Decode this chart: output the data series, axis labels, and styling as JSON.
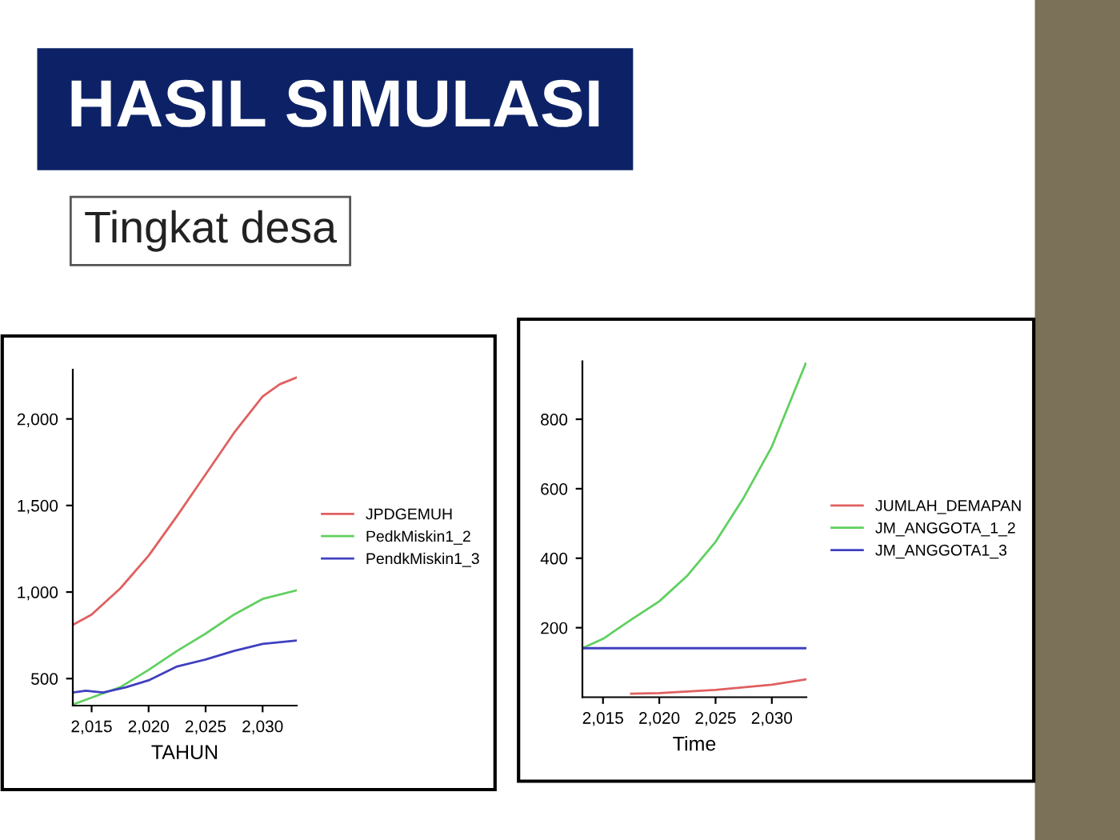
{
  "chart_data": [
    {
      "type": "line",
      "title": "HASIL SIMULASI",
      "subtitle": "Tingkat desa",
      "xlabel": "TAHUN",
      "legend": "right",
      "grid": false,
      "xlim": [
        2013.35,
        2033
      ],
      "ylim": [
        344,
        2285
      ],
      "xticks": [
        {
          "value": 2015,
          "label": "2,015"
        },
        {
          "value": 2020,
          "label": "2,020"
        },
        {
          "value": 2025,
          "label": "2,025"
        },
        {
          "value": 2030,
          "label": "2,030"
        }
      ],
      "yticks": [
        500,
        {
          "value": 1000,
          "label": "1,000"
        },
        {
          "value": 1500,
          "label": "1,500"
        },
        {
          "value": 2000,
          "label": "2,000"
        }
      ],
      "series": [
        {
          "name": "JPDGEMUH",
          "color": "#e06060",
          "x": [
            2013.35,
            2015,
            2017.5,
            2020,
            2022.5,
            2025,
            2027.5,
            2030,
            2031.5,
            2033
          ],
          "values": [
            810,
            870,
            1020,
            1210,
            1440,
            1680,
            1920,
            2130,
            2200,
            2240
          ]
        },
        {
          "name": "PedkMiskin1_2",
          "color": "#60d060",
          "x": [
            2013.35,
            2015,
            2017.5,
            2020,
            2022.5,
            2025,
            2027.5,
            2030,
            2033
          ],
          "values": [
            350,
            390,
            450,
            550,
            660,
            760,
            870,
            960,
            1010
          ]
        },
        {
          "name": "PendkMiskin1_3",
          "color": "#4040c0",
          "x": [
            2013.35,
            2014.5,
            2016,
            2018,
            2020,
            2022.5,
            2025,
            2027.5,
            2030,
            2033
          ],
          "values": [
            420,
            430,
            420,
            450,
            490,
            570,
            610,
            660,
            700,
            720
          ]
        }
      ]
    },
    {
      "type": "line",
      "xlabel": "Time",
      "legend": "right",
      "grid": false,
      "xlim": [
        2013.17,
        2033.07
      ],
      "ylim": [
        0,
        967
      ],
      "xticks": [
        {
          "value": 2015,
          "label": "2,015"
        },
        {
          "value": 2020,
          "label": "2,020"
        },
        {
          "value": 2025,
          "label": "2,025"
        },
        {
          "value": 2030,
          "label": "2,030"
        }
      ],
      "yticks": [
        200,
        400,
        600,
        800
      ],
      "series": [
        {
          "name": "JUMLAH_DEMAPAN",
          "color": "#e06060",
          "x": [
            2017.5,
            2020,
            2025,
            2030,
            2033
          ],
          "values": [
            10,
            12,
            21,
            36,
            51
          ]
        },
        {
          "name": "JM_ANGGOTA_1_2",
          "color": "#60d060",
          "x": [
            2013.17,
            2015,
            2017.5,
            2020,
            2022.5,
            2025,
            2027.5,
            2030,
            2033
          ],
          "values": [
            141,
            168,
            223,
            276,
            350,
            447,
            574,
            721,
            960
          ]
        },
        {
          "name": "JM_ANGGOTA1_3",
          "color": "#4040c0",
          "x": [
            2013.17,
            2020,
            2025,
            2030,
            2033
          ],
          "values": [
            141,
            141,
            141,
            141,
            141
          ]
        }
      ]
    }
  ]
}
